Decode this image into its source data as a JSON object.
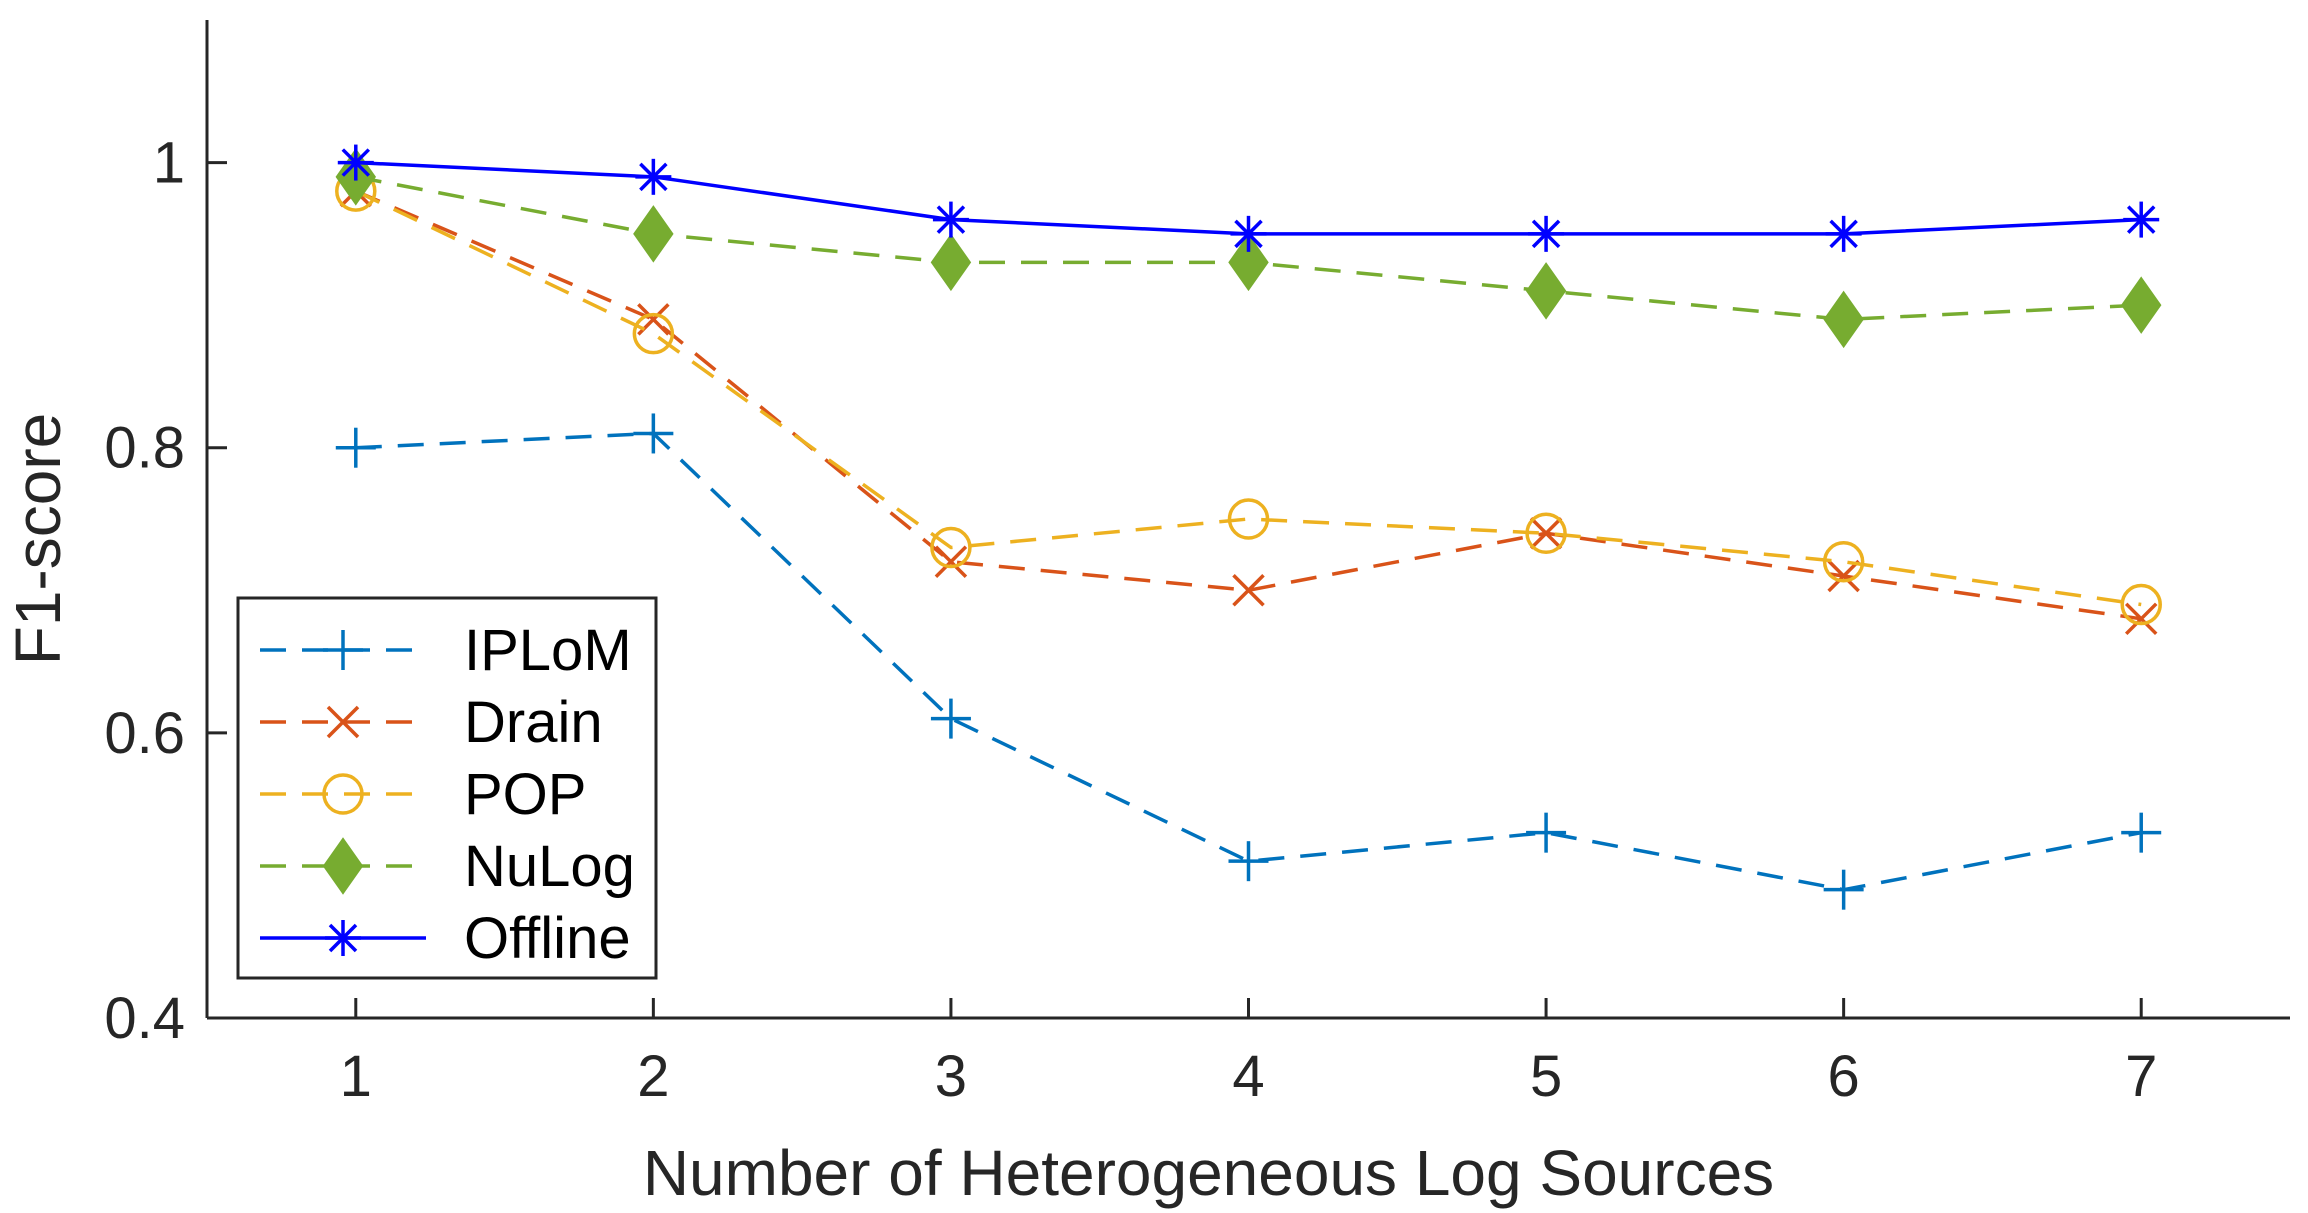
{
  "chart_data": {
    "type": "line",
    "title": "",
    "xlabel": "Number of Heterogeneous Log Sources",
    "ylabel": "F1-score",
    "x": [
      1,
      2,
      3,
      4,
      5,
      6,
      7
    ],
    "xlim": [
      0.5,
      7.5
    ],
    "ylim": [
      0.4,
      1.1
    ],
    "xticks": [
      1,
      2,
      3,
      4,
      5,
      6,
      7
    ],
    "yticks": [
      0.4,
      0.6,
      0.8,
      1.0
    ],
    "ytick_labels": [
      "0.4",
      "0.6",
      "0.8",
      "1"
    ],
    "grid": false,
    "legend_position": "lower-left",
    "series": [
      {
        "name": "IPLoM",
        "values": [
          0.8,
          0.81,
          0.61,
          0.51,
          0.53,
          0.49,
          0.53
        ],
        "color": "#0072BD",
        "line_style": "dashed",
        "marker": "plus"
      },
      {
        "name": "Drain",
        "values": [
          0.98,
          0.89,
          0.72,
          0.7,
          0.74,
          0.71,
          0.68
        ],
        "color": "#D95319",
        "line_style": "dashed",
        "marker": "x"
      },
      {
        "name": "POP",
        "values": [
          0.98,
          0.88,
          0.73,
          0.75,
          0.74,
          0.72,
          0.69
        ],
        "color": "#EDB120",
        "line_style": "dashed",
        "marker": "circle"
      },
      {
        "name": "NuLog",
        "values": [
          0.99,
          0.95,
          0.93,
          0.93,
          0.91,
          0.89,
          0.9
        ],
        "color": "#77AC30",
        "line_style": "dashed",
        "marker": "diamond"
      },
      {
        "name": "Offline",
        "values": [
          1.0,
          0.99,
          0.96,
          0.95,
          0.95,
          0.95,
          0.96
        ],
        "color": "#0000FF",
        "line_style": "solid",
        "marker": "asterisk"
      }
    ]
  }
}
